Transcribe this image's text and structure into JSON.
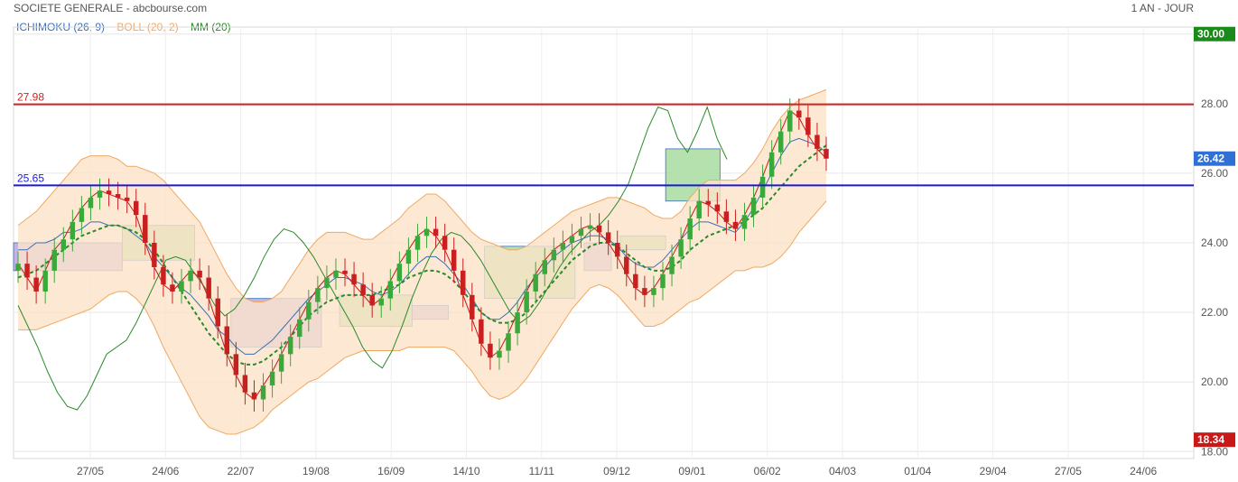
{
  "header": {
    "title": "SOCIETE GENERALE - abcbourse.com",
    "period": "1 AN - JOUR"
  },
  "legend": [
    {
      "label": "ICHIMOKU (26, 9)",
      "color": "#3a6fb8"
    },
    {
      "label": "BOLL (20, 2)",
      "color": "#f0a860"
    },
    {
      "label": "MM (20)",
      "color": "#2a8a2a"
    }
  ],
  "chart_data": {
    "type": "candlestick",
    "x_ticks": [
      "27/05",
      "24/06",
      "22/07",
      "19/08",
      "16/09",
      "14/10",
      "11/11",
      "09/12",
      "09/01",
      "06/02",
      "04/03",
      "01/04",
      "29/04",
      "27/05",
      "24/06"
    ],
    "y_ticks": [
      "18.00",
      "20.00",
      "22.00",
      "24.00",
      "26.00",
      "28.00",
      "30.00"
    ],
    "ylim": [
      17.8,
      30.2
    ],
    "badges": {
      "max": {
        "label": "30.00",
        "color": "#1a8a1a"
      },
      "last": {
        "label": "26.42",
        "color": "#2f6fd6"
      },
      "min": {
        "label": "18.34",
        "color": "#c81818"
      }
    },
    "hlines": [
      {
        "value": 27.98,
        "label": "27.98",
        "color": "#d42020"
      },
      {
        "value": 25.65,
        "label": "25.65",
        "color": "#1a1ad0"
      }
    ],
    "close_series": [
      23.4,
      23.0,
      22.6,
      23.2,
      23.8,
      24.1,
      24.6,
      25.0,
      25.3,
      25.5,
      25.4,
      25.3,
      25.2,
      24.8,
      24.0,
      23.3,
      22.8,
      22.6,
      22.9,
      23.2,
      23.0,
      22.4,
      21.6,
      20.8,
      20.2,
      19.7,
      19.5,
      19.9,
      20.3,
      20.8,
      21.3,
      21.8,
      22.3,
      22.7,
      23.0,
      23.2,
      23.1,
      22.8,
      22.5,
      22.2,
      22.4,
      22.9,
      23.4,
      23.8,
      24.2,
      24.4,
      24.2,
      23.8,
      23.2,
      22.5,
      21.8,
      21.1,
      20.7,
      20.9,
      21.4,
      22.0,
      22.6,
      23.1,
      23.5,
      23.8,
      24.0,
      24.2,
      24.4,
      24.5,
      24.3,
      24.0,
      23.6,
      23.1,
      22.7,
      22.5,
      22.7,
      23.1,
      23.6,
      24.1,
      24.7,
      25.2,
      25.1,
      24.9,
      24.6,
      24.4,
      24.8,
      25.3,
      25.9,
      26.6,
      27.2,
      27.8,
      27.6,
      27.1,
      26.7,
      26.42
    ],
    "sma_series": [
      23.0,
      23.1,
      23.2,
      23.4,
      23.6,
      23.8,
      24.0,
      24.2,
      24.3,
      24.4,
      24.5,
      24.5,
      24.4,
      24.3,
      24.1,
      23.8,
      23.4,
      23.0,
      22.6,
      22.2,
      21.8,
      21.4,
      21.1,
      20.8,
      20.6,
      20.5,
      20.5,
      20.6,
      20.8,
      21.0,
      21.3,
      21.6,
      21.9,
      22.1,
      22.3,
      22.4,
      22.5,
      22.5,
      22.5,
      22.5,
      22.6,
      22.7,
      22.8,
      23.0,
      23.1,
      23.2,
      23.2,
      23.1,
      22.9,
      22.6,
      22.3,
      22.0,
      21.8,
      21.7,
      21.7,
      21.8,
      22.0,
      22.3,
      22.6,
      22.9,
      23.2,
      23.5,
      23.7,
      23.9,
      24.0,
      24.0,
      23.9,
      23.7,
      23.5,
      23.3,
      23.2,
      23.2,
      23.3,
      23.5,
      23.8,
      24.0,
      24.2,
      24.3,
      24.4,
      24.5,
      24.6,
      24.8,
      25.0,
      25.3,
      25.6,
      25.9,
      26.2,
      26.4,
      26.6,
      26.8
    ],
    "boll_width": [
      1.5,
      1.6,
      1.7,
      1.8,
      1.9,
      2.0,
      2.1,
      2.2,
      2.2,
      2.1,
      2.0,
      1.9,
      1.8,
      1.9,
      2.0,
      2.2,
      2.4,
      2.5,
      2.6,
      2.7,
      2.8,
      2.7,
      2.5,
      2.3,
      2.1,
      1.9,
      1.8,
      1.7,
      1.6,
      1.6,
      1.7,
      1.8,
      1.9,
      2.0,
      2.0,
      1.9,
      1.8,
      1.7,
      1.6,
      1.6,
      1.7,
      1.8,
      1.9,
      2.0,
      2.1,
      2.2,
      2.2,
      2.1,
      2.0,
      2.0,
      2.0,
      2.1,
      2.2,
      2.2,
      2.1,
      2.0,
      1.9,
      1.8,
      1.7,
      1.6,
      1.5,
      1.4,
      1.3,
      1.2,
      1.2,
      1.3,
      1.4,
      1.5,
      1.6,
      1.7,
      1.6,
      1.5,
      1.4,
      1.4,
      1.5,
      1.6,
      1.6,
      1.5,
      1.4,
      1.3,
      1.4,
      1.5,
      1.7,
      1.9,
      2.0,
      2.0,
      1.9,
      1.8,
      1.7,
      1.6
    ],
    "cloud": [
      {
        "x0": 0.0,
        "x1": 0.12,
        "top": 24.0,
        "bottom": 23.2,
        "fill": "#b9a6e4"
      },
      {
        "x0": 0.12,
        "x1": 0.2,
        "top": 24.5,
        "bottom": 23.5,
        "fill": "#a8dca0"
      },
      {
        "x0": 0.24,
        "x1": 0.34,
        "top": 22.4,
        "bottom": 21.0,
        "fill": "#b9a6e4"
      },
      {
        "x0": 0.36,
        "x1": 0.44,
        "top": 22.5,
        "bottom": 21.6,
        "fill": "#a8dca0"
      },
      {
        "x0": 0.44,
        "x1": 0.48,
        "top": 22.2,
        "bottom": 21.8,
        "fill": "#b9a6e4"
      },
      {
        "x0": 0.52,
        "x1": 0.62,
        "top": 23.9,
        "bottom": 22.4,
        "fill": "#a8dca0"
      },
      {
        "x0": 0.63,
        "x1": 0.66,
        "top": 24.0,
        "bottom": 23.2,
        "fill": "#b9a6e4"
      },
      {
        "x0": 0.67,
        "x1": 0.72,
        "top": 24.2,
        "bottom": 23.8,
        "fill": "#a8dca0"
      },
      {
        "x0": 0.72,
        "x1": 0.78,
        "top": 26.7,
        "bottom": 25.2,
        "fill": "#a8dca0"
      }
    ],
    "ichimoku_line": [
      23.8,
      23.8,
      24.0,
      24.0,
      24.1,
      24.3,
      24.3,
      24.4,
      24.6,
      24.6,
      24.5,
      24.5,
      24.4,
      24.2,
      24.0,
      23.6,
      23.3,
      23.0,
      22.7,
      22.5,
      22.2,
      21.9,
      21.5,
      21.3,
      21.0,
      20.8,
      20.8,
      21.0,
      21.2,
      21.5,
      21.8,
      22.1,
      22.4,
      22.6,
      22.8,
      23.0,
      23.0,
      22.9,
      22.8,
      22.6,
      22.5,
      22.6,
      22.8,
      23.1,
      23.4,
      23.6,
      23.6,
      23.4,
      23.1,
      22.8,
      22.4,
      22.0,
      21.8,
      21.8,
      22.0,
      22.3,
      22.7,
      23.0,
      23.3,
      23.6,
      23.8,
      24.0,
      24.1,
      24.2,
      24.2,
      24.1,
      23.9,
      23.6,
      23.4,
      23.3,
      23.3,
      23.5,
      23.8,
      24.1,
      24.4,
      24.6,
      24.6,
      24.5,
      24.4,
      24.3,
      24.6,
      25.0,
      25.5,
      26.0,
      26.5,
      26.9,
      27.0,
      26.9,
      26.8,
      26.6
    ],
    "chikou_series": [
      22.2,
      21.6,
      21.0,
      20.3,
      19.7,
      19.3,
      19.2,
      19.6,
      20.2,
      20.8,
      21.0,
      21.2,
      21.7,
      22.3,
      22.9,
      23.5,
      23.6,
      23.5,
      23.1,
      22.7,
      22.2,
      21.9,
      22.1,
      22.5,
      23.0,
      23.6,
      24.1,
      24.4,
      24.3,
      24.0,
      23.6,
      23.1,
      22.6,
      22.1,
      21.6,
      21.0,
      20.6,
      20.4,
      20.9,
      21.6,
      22.4,
      23.1,
      23.7,
      24.1,
      24.3,
      24.2,
      23.9,
      23.5,
      23.0,
      22.5,
      22.0,
      21.7,
      21.9,
      22.3,
      22.8,
      23.3,
      23.7,
      24.0,
      24.3,
      24.5,
      24.8,
      25.2,
      25.7,
      26.5,
      27.3,
      27.9,
      27.8,
      27.0,
      26.6,
      27.2,
      27.9,
      27.0,
      26.4
    ]
  }
}
